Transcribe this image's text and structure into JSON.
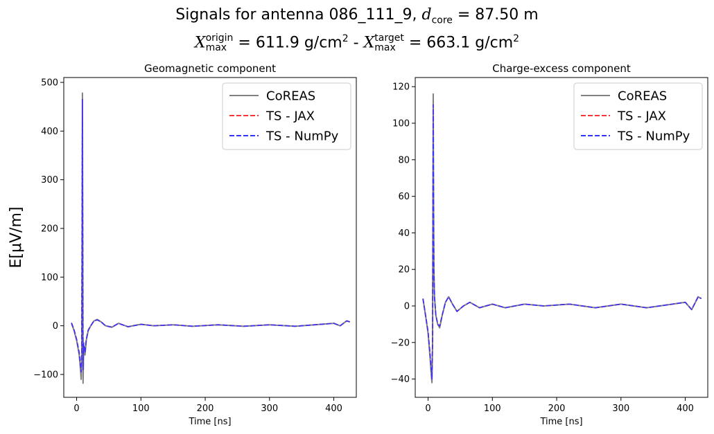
{
  "figure": {
    "title_line1_prefix": "Signals for antenna 086_111_9, ",
    "title_line1_dcore": "d",
    "title_line1_dcore_sub": "core",
    "title_line1_suffix": " = 87.50 m",
    "title_line2_x1": "X",
    "title_line2_x1_sup": "origin",
    "title_line2_x1_sub": "max",
    "title_line2_mid": " =  611.9 g/cm",
    "title_line2_mid_sup": "2",
    "title_line2_sep": " -  ",
    "title_line2_x2": "X",
    "title_line2_x2_sup": "target",
    "title_line2_x2_sub": "max",
    "title_line2_end": " =  663.1 g/cm",
    "title_line2_end_sup": "2",
    "ylabel": "E[μV/m]"
  },
  "colors": {
    "coreas": "#808080",
    "ts_jax": "#ff3333",
    "ts_numpy": "#3333ff"
  },
  "chart_data": [
    {
      "type": "line",
      "title": "Geomagnetic component",
      "xlabel": "Time [ns]",
      "ylabel": "E[μV/m]",
      "xlim": [
        -20,
        435
      ],
      "ylim": [
        -147,
        510
      ],
      "xticks": [
        0,
        100,
        200,
        300,
        400
      ],
      "yticks": [
        -100,
        0,
        100,
        200,
        300,
        400,
        500
      ],
      "ytick_labels": [
        "−100",
        "0",
        "100",
        "200",
        "300",
        "400",
        "500"
      ],
      "legend": {
        "position": "upper right",
        "entries": [
          "CoREAS",
          "TS - JAX",
          "TS - NumPy"
        ]
      },
      "series": [
        {
          "name": "CoREAS",
          "style": "solid",
          "x": [
            -8,
            -4,
            0,
            4,
            6,
            7,
            8,
            8.5,
            9,
            9.5,
            10,
            11,
            13,
            15,
            18,
            22,
            27,
            32,
            38,
            45,
            55,
            65,
            80,
            100,
            120,
            150,
            180,
            220,
            260,
            300,
            340,
            380,
            400,
            410,
            420,
            425
          ],
          "y": [
            5,
            -10,
            -30,
            -60,
            -90,
            -110,
            -60,
            200,
            478,
            200,
            -118,
            -40,
            -60,
            -30,
            -10,
            0,
            10,
            13,
            8,
            0,
            -3,
            5,
            -2,
            3,
            0,
            2,
            -1,
            2,
            -1,
            2,
            -1,
            3,
            5,
            0,
            10,
            8
          ]
        },
        {
          "name": "TS - JAX",
          "style": "dashed",
          "x": [
            -8,
            -4,
            0,
            4,
            6,
            7,
            8,
            8.5,
            9,
            9.5,
            10,
            11,
            13,
            15,
            18,
            22,
            27,
            32,
            38,
            45,
            55,
            65,
            80,
            100,
            120,
            150,
            180,
            220,
            260,
            300,
            340,
            380,
            400,
            410,
            420,
            425
          ],
          "y": [
            6,
            -8,
            -28,
            -55,
            -80,
            -95,
            -50,
            200,
            465,
            200,
            -90,
            -35,
            -55,
            -28,
            -9,
            0,
            10,
            12,
            8,
            0,
            -3,
            5,
            -2,
            3,
            0,
            2,
            -1,
            2,
            -1,
            2,
            -1,
            3,
            5,
            0,
            10,
            8
          ]
        },
        {
          "name": "TS - NumPy",
          "style": "dashed",
          "x": [
            -8,
            -4,
            0,
            4,
            6,
            7,
            8,
            8.5,
            9,
            9.5,
            10,
            11,
            13,
            15,
            18,
            22,
            27,
            32,
            38,
            45,
            55,
            65,
            80,
            100,
            120,
            150,
            180,
            220,
            260,
            300,
            340,
            380,
            400,
            410,
            420,
            425
          ],
          "y": [
            6,
            -8,
            -28,
            -55,
            -80,
            -95,
            -50,
            200,
            465,
            200,
            -90,
            -35,
            -55,
            -28,
            -9,
            0,
            10,
            12,
            8,
            0,
            -3,
            5,
            -2,
            3,
            0,
            2,
            -1,
            2,
            -1,
            2,
            -1,
            3,
            5,
            0,
            10,
            8
          ]
        }
      ]
    },
    {
      "type": "line",
      "title": "Charge-excess component",
      "xlabel": "Time [ns]",
      "ylabel": "",
      "xlim": [
        -20,
        435
      ],
      "ylim": [
        -50,
        125
      ],
      "xticks": [
        0,
        100,
        200,
        300,
        400
      ],
      "yticks": [
        -40,
        -20,
        0,
        20,
        40,
        60,
        80,
        100,
        120
      ],
      "ytick_labels": [
        "−40",
        "−20",
        "0",
        "20",
        "40",
        "60",
        "80",
        "100",
        "120"
      ],
      "legend": {
        "position": "upper right",
        "entries": [
          "CoREAS",
          "TS - JAX",
          "TS - NumPy"
        ]
      },
      "series": [
        {
          "name": "CoREAS",
          "style": "solid",
          "x": [
            -8,
            -4,
            0,
            3,
            5,
            6,
            7,
            7.5,
            8,
            8.5,
            9,
            10,
            12,
            15,
            18,
            22,
            27,
            32,
            38,
            45,
            55,
            65,
            80,
            100,
            120,
            150,
            180,
            220,
            260,
            300,
            340,
            380,
            400,
            410,
            420,
            425
          ],
          "y": [
            4,
            -5,
            -15,
            -28,
            -38,
            -42,
            -20,
            50,
            116,
            60,
            20,
            5,
            -5,
            -10,
            -12,
            -5,
            2,
            5,
            1,
            -3,
            0,
            2,
            -1,
            1,
            -1,
            1,
            0,
            1,
            -1,
            1,
            -1,
            1,
            2,
            -2,
            5,
            4
          ]
        },
        {
          "name": "TS - JAX",
          "style": "dashed",
          "x": [
            -8,
            -4,
            0,
            3,
            5,
            6,
            7,
            7.5,
            8,
            8.5,
            9,
            10,
            12,
            15,
            18,
            22,
            27,
            32,
            38,
            45,
            55,
            65,
            80,
            100,
            120,
            150,
            180,
            220,
            260,
            300,
            340,
            380,
            400,
            410,
            420,
            425
          ],
          "y": [
            4,
            -5,
            -14,
            -26,
            -35,
            -40,
            -18,
            50,
            110,
            58,
            20,
            5,
            -5,
            -10,
            -11,
            -5,
            2,
            5,
            1,
            -3,
            0,
            2,
            -1,
            1,
            -1,
            1,
            0,
            1,
            -1,
            1,
            -1,
            1,
            2,
            -2,
            5,
            4
          ]
        },
        {
          "name": "TS - NumPy",
          "style": "dashed",
          "x": [
            -8,
            -4,
            0,
            3,
            5,
            6,
            7,
            7.5,
            8,
            8.5,
            9,
            10,
            12,
            15,
            18,
            22,
            27,
            32,
            38,
            45,
            55,
            65,
            80,
            100,
            120,
            150,
            180,
            220,
            260,
            300,
            340,
            380,
            400,
            410,
            420,
            425
          ],
          "y": [
            4,
            -5,
            -14,
            -26,
            -35,
            -40,
            -18,
            50,
            110,
            58,
            20,
            5,
            -5,
            -10,
            -11,
            -5,
            2,
            5,
            1,
            -3,
            0,
            2,
            -1,
            1,
            -1,
            1,
            0,
            1,
            -1,
            1,
            -1,
            1,
            2,
            -2,
            5,
            4
          ]
        }
      ]
    }
  ]
}
